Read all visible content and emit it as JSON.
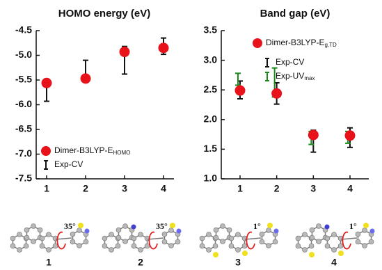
{
  "chart_data": [
    {
      "type": "scatter",
      "title": "HOMO energy (eV)",
      "categories": [
        "1",
        "2",
        "3",
        "4"
      ],
      "ylim": [
        -7.5,
        -4.5
      ],
      "yticks": [
        -4.5,
        {
          "value": -5,
          "label": "-5.0"
        },
        -5.5,
        {
          "value": -6,
          "label": "-6.0"
        },
        -6.5,
        {
          "value": -7,
          "label": "-7.0"
        },
        -7.5
      ],
      "legend": "lower left",
      "series": [
        {
          "name": "Dimer-B3LYP-E",
          "name_subscript": "HOMO",
          "color": "#e8121a",
          "values": [
            -5.56,
            -5.47,
            -4.93,
            -4.85
          ]
        },
        {
          "name": "Exp-CV",
          "color": "#111111",
          "low": [
            -5.93,
            -5.48,
            -5.38,
            -4.98
          ],
          "high": [
            -5.52,
            -5.1,
            -4.82,
            -4.65
          ]
        }
      ]
    },
    {
      "type": "scatter",
      "title": "Band gap (eV)",
      "categories": [
        "1",
        "2",
        "3",
        "4"
      ],
      "ylim": [
        1,
        3.5
      ],
      "yticks": [
        {
          "value": 1,
          "label": "1.0"
        },
        1.5,
        {
          "value": 2,
          "label": "2.0"
        },
        2.5,
        {
          "value": 3,
          "label": "3.0"
        },
        3.5
      ],
      "legend": "upper right",
      "series": [
        {
          "name": "Dimer-B3LYP-E",
          "name_subscript": "g,TD",
          "color": "#e8121a",
          "values": [
            2.49,
            2.44,
            1.74,
            1.73
          ]
        },
        {
          "name": "Exp-CV",
          "color": "#111111",
          "low": [
            2.35,
            2.26,
            1.45,
            1.53
          ],
          "high": [
            2.65,
            2.62,
            1.82,
            1.86
          ]
        },
        {
          "name": "Exp-UV",
          "name_subscript": "max",
          "color": "#1a8a1a",
          "low": [
            2.58,
            2.38,
            1.58,
            1.6
          ],
          "high": [
            2.78,
            2.87,
            1.8,
            1.8
          ]
        }
      ]
    }
  ],
  "molecules": [
    {
      "label": "1",
      "angle": "35°"
    },
    {
      "label": "2",
      "angle": "35°"
    },
    {
      "label": "3",
      "angle": "1°"
    },
    {
      "label": "4",
      "angle": "1°"
    }
  ]
}
